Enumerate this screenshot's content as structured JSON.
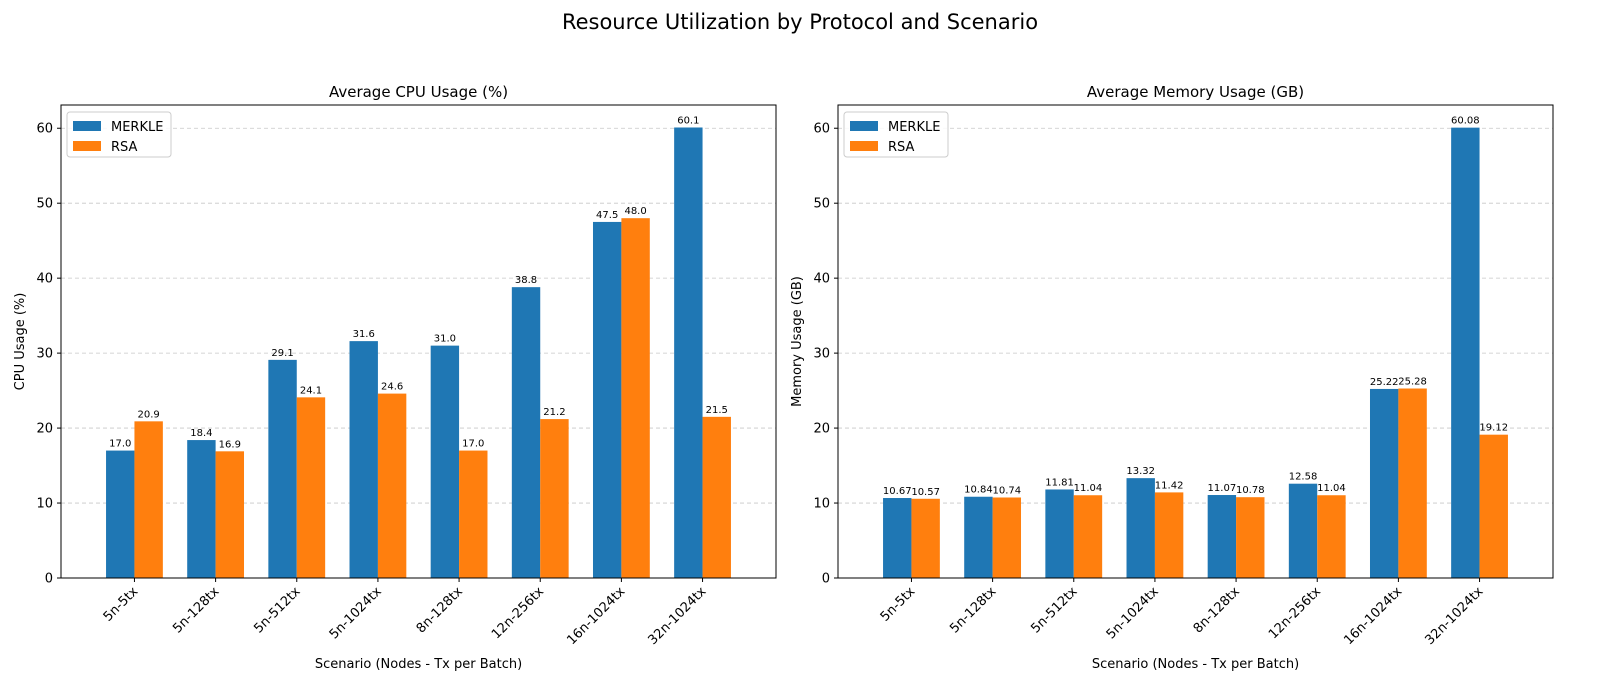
{
  "figure": {
    "title": "Resource Utilization by Protocol and Scenario"
  },
  "colors": {
    "MERKLE": "#1f77b4",
    "RSA": "#ff7f0e",
    "grid": "#b0b0b0"
  },
  "chart_data": [
    {
      "type": "bar",
      "title": "Average CPU Usage (%)",
      "xlabel": "Scenario (Nodes - Tx per Batch)",
      "ylabel": "CPU Usage (%)",
      "ylim": [
        0,
        63.1
      ],
      "yticks": [
        0,
        10,
        20,
        30,
        40,
        50,
        60
      ],
      "grid": "y-dashed",
      "legend": "upper-left",
      "decimals": 1,
      "categories": [
        "5n-5tx",
        "5n-128tx",
        "5n-512tx",
        "5n-1024tx",
        "8n-128tx",
        "12n-256tx",
        "16n-1024tx",
        "32n-1024tx"
      ],
      "series": [
        {
          "name": "MERKLE",
          "values": [
            17.0,
            18.4,
            29.1,
            31.6,
            31.0,
            38.8,
            47.5,
            60.1
          ]
        },
        {
          "name": "RSA",
          "values": [
            20.9,
            16.9,
            24.1,
            24.6,
            17.0,
            21.2,
            48.0,
            21.5
          ]
        }
      ]
    },
    {
      "type": "bar",
      "title": "Average Memory Usage (GB)",
      "xlabel": "Scenario (Nodes - Tx per Batch)",
      "ylabel": "Memory Usage (GB)",
      "ylim": [
        0,
        63.1
      ],
      "yticks": [
        0,
        10,
        20,
        30,
        40,
        50,
        60
      ],
      "grid": "y-dashed",
      "legend": "upper-left",
      "decimals": 2,
      "categories": [
        "5n-5tx",
        "5n-128tx",
        "5n-512tx",
        "5n-1024tx",
        "8n-128tx",
        "12n-256tx",
        "16n-1024tx",
        "32n-1024tx"
      ],
      "series": [
        {
          "name": "MERKLE",
          "values": [
            10.67,
            10.84,
            11.81,
            13.32,
            11.07,
            12.58,
            25.22,
            60.08
          ]
        },
        {
          "name": "RSA",
          "values": [
            10.57,
            10.74,
            11.04,
            11.42,
            10.78,
            11.04,
            25.28,
            19.12
          ]
        }
      ]
    }
  ]
}
